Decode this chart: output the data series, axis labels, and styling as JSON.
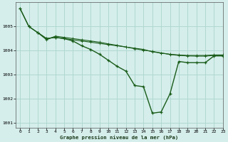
{
  "title": "Graphe pression niveau de la mer (hPa)",
  "background_color": "#d5eeeb",
  "grid_color": "#b0d8d0",
  "line_color_dark": "#1a5c1a",
  "xlim": [
    -0.5,
    23
  ],
  "ylim": [
    1000.8,
    1006.0
  ],
  "xticks": [
    0,
    1,
    2,
    3,
    4,
    5,
    6,
    7,
    8,
    9,
    10,
    11,
    12,
    13,
    14,
    15,
    16,
    17,
    18,
    19,
    20,
    21,
    22,
    23
  ],
  "yticks": [
    1001,
    1002,
    1003,
    1004,
    1005
  ],
  "series_smooth_x": [
    0,
    1,
    2,
    3,
    4,
    5,
    6,
    7,
    8,
    9,
    10,
    11,
    12,
    13,
    14,
    15,
    16,
    17,
    18,
    19,
    20,
    21,
    22,
    23
  ],
  "series_smooth_y": [
    1005.75,
    1005.0,
    1004.75,
    1004.5,
    1004.55,
    1004.5,
    1004.45,
    1004.4,
    1004.35,
    1004.3,
    1004.25,
    1004.2,
    1004.15,
    1004.1,
    1004.05,
    1003.95,
    1003.9,
    1003.85,
    1003.82,
    1003.8,
    1003.8,
    1003.8,
    1003.82,
    1003.82
  ],
  "series_main_x": [
    0,
    1,
    2,
    3,
    4,
    5,
    6,
    7,
    8,
    9,
    10,
    11,
    12,
    13,
    14,
    15,
    16,
    17,
    18,
    19,
    20,
    21,
    22,
    23
  ],
  "series_main_y": [
    1005.75,
    1005.0,
    1004.75,
    1004.5,
    1004.55,
    1004.5,
    1004.4,
    1004.2,
    1004.05,
    1003.85,
    1003.6,
    1003.35,
    1003.15,
    1002.55,
    1002.5,
    1001.4,
    1001.45,
    1002.2,
    1003.55,
    1003.5,
    1003.5,
    1003.5,
    1003.78,
    1003.78
  ],
  "series_third_x": [
    2,
    3,
    4,
    5,
    6,
    7,
    8,
    9,
    10,
    11,
    12,
    13,
    14,
    15,
    16,
    17,
    18,
    19,
    20,
    21,
    22,
    23
  ],
  "series_third_y": [
    1004.75,
    1004.45,
    1004.6,
    1004.55,
    1004.5,
    1004.45,
    1004.4,
    1004.35,
    1004.28,
    1004.22,
    1004.15,
    1004.08,
    1004.02,
    1003.97,
    1003.9,
    1003.84,
    1003.8,
    1003.78,
    1003.77,
    1003.77,
    1003.8,
    1003.8
  ]
}
